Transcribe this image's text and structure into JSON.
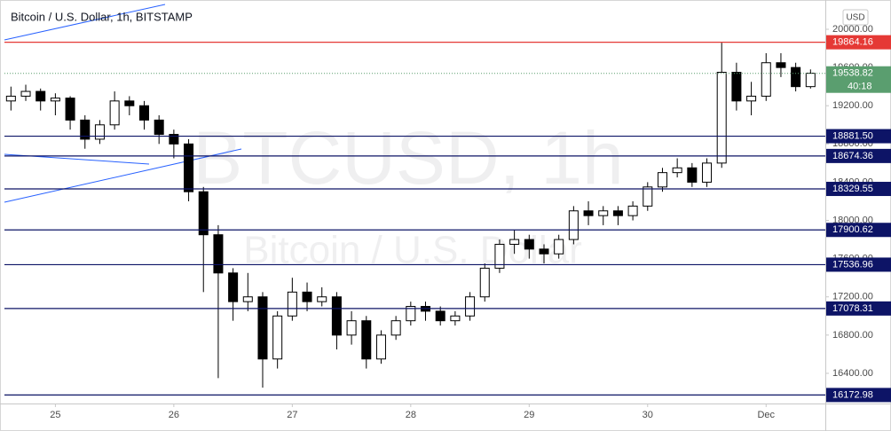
{
  "chart_data": {
    "type": "candlestick",
    "title": "Bitcoin / U.S. Dollar, 1h, BITSTAMP",
    "watermark": "BTCUSD, 1h",
    "watermark_subtitle": "Bitcoin / U.S. Dollar",
    "currency": "USD",
    "up_color": "#ffffff",
    "down_color": "#000000",
    "grid": false,
    "xlim": [
      24.57,
      31.5
    ],
    "ylim": [
      16084,
      20260
    ],
    "xticks": [
      {
        "value": 25,
        "label": "25"
      },
      {
        "value": 26,
        "label": "26"
      },
      {
        "value": 27,
        "label": "27"
      },
      {
        "value": 28,
        "label": "28"
      },
      {
        "value": 29,
        "label": "29"
      },
      {
        "value": 30,
        "label": "30"
      },
      {
        "value": 31,
        "label": "Dec"
      }
    ],
    "yticks": [
      {
        "value": 16400,
        "label": "16400.00"
      },
      {
        "value": 16800,
        "label": "16800.00"
      },
      {
        "value": 17200,
        "label": "17200.00"
      },
      {
        "value": 17600,
        "label": "17600.00"
      },
      {
        "value": 18000,
        "label": "18000.00"
      },
      {
        "value": 18400,
        "label": "18400.00"
      },
      {
        "value": 18800,
        "label": "18800.00"
      },
      {
        "value": 19200,
        "label": "19200.00"
      },
      {
        "value": 19600,
        "label": "19600.00"
      },
      {
        "value": 20000,
        "label": "20000.00"
      }
    ],
    "levels": [
      {
        "value": 19864.16,
        "label": "19864.16",
        "color": "#e53935"
      },
      {
        "value": 18881.5,
        "label": "18881.50",
        "color": "#0d1466"
      },
      {
        "value": 18674.36,
        "label": "18674.36",
        "color": "#0d1466"
      },
      {
        "value": 18329.55,
        "label": "18329.55",
        "color": "#0d1466"
      },
      {
        "value": 17900.62,
        "label": "17900.62",
        "color": "#0d1466"
      },
      {
        "value": 17536.96,
        "label": "17536.96",
        "color": "#0d1466"
      },
      {
        "value": 17078.31,
        "label": "17078.31",
        "color": "#0d1466"
      },
      {
        "value": 16172.98,
        "label": "16172.98",
        "color": "#0d1466"
      }
    ],
    "last_price": {
      "value": 19538.82,
      "label": "19538.82",
      "color": "#5a9e6f"
    },
    "countdown": "40:18",
    "x": [
      24.625,
      24.75,
      24.875,
      25,
      25.125,
      25.25,
      25.375,
      25.5,
      25.625,
      25.75,
      25.875,
      26,
      26.125,
      26.25,
      26.375,
      26.5,
      26.625,
      26.75,
      26.875,
      27,
      27.125,
      27.25,
      27.375,
      27.5,
      27.625,
      27.75,
      27.875,
      28,
      28.125,
      28.25,
      28.375,
      28.5,
      28.625,
      28.75,
      28.875,
      29,
      29.125,
      29.25,
      29.375,
      29.5,
      29.625,
      29.75,
      29.875,
      30,
      30.125,
      30.25,
      30.375,
      30.5,
      30.625,
      30.75,
      30.875,
      31,
      31.125,
      31.25,
      31.375
    ],
    "open": [
      19250,
      19300,
      19350,
      19250,
      19280,
      19050,
      18850,
      19000,
      19250,
      19200,
      19050,
      18900,
      18800,
      18300,
      17850,
      17450,
      17150,
      17200,
      16550,
      17000,
      17250,
      17150,
      17200,
      16800,
      16950,
      16550,
      16800,
      16950,
      17100,
      17050,
      16950,
      17000,
      17200,
      17500,
      17750,
      17800,
      17700,
      17650,
      17800,
      18100,
      18050,
      18100,
      18050,
      18150,
      18350,
      18500,
      18550,
      18400,
      18600,
      19550,
      19250,
      19300,
      19650,
      19600,
      19400
    ],
    "high": [
      19400,
      19420,
      19380,
      19330,
      19300,
      19100,
      19050,
      19350,
      19300,
      19250,
      19100,
      18950,
      18850,
      18350,
      17950,
      17500,
      17450,
      17250,
      17050,
      17400,
      17350,
      17300,
      17250,
      17050,
      17000,
      16850,
      17000,
      17150,
      17150,
      17100,
      17050,
      17250,
      17550,
      17800,
      17900,
      17850,
      17750,
      17850,
      18150,
      18200,
      18150,
      18150,
      18200,
      18400,
      18550,
      18650,
      18600,
      18650,
      19860,
      19650,
      19450,
      19750,
      19750,
      19650,
      19580
    ],
    "low": [
      19150,
      19250,
      19150,
      19100,
      18950,
      18750,
      18800,
      18950,
      19100,
      18950,
      18800,
      18650,
      18200,
      17250,
      16350,
      16950,
      17050,
      16250,
      16450,
      16950,
      17050,
      17100,
      16650,
      16700,
      16450,
      16500,
      16750,
      16900,
      16950,
      16900,
      16900,
      16950,
      17150,
      17450,
      17650,
      17600,
      17550,
      17600,
      17750,
      17950,
      17950,
      17950,
      18000,
      18100,
      18300,
      18450,
      18350,
      18350,
      18550,
      19150,
      19100,
      19250,
      19500,
      19350,
      19380
    ],
    "close": [
      19300,
      19350,
      19250,
      19280,
      19050,
      18850,
      19000,
      19250,
      19200,
      19050,
      18900,
      18800,
      18300,
      17850,
      17450,
      17150,
      17200,
      16550,
      17000,
      17250,
      17150,
      17200,
      16800,
      16950,
      16550,
      16800,
      16950,
      17100,
      17050,
      16950,
      17000,
      17200,
      17500,
      17750,
      17800,
      17700,
      17650,
      17800,
      18100,
      18050,
      18100,
      18050,
      18150,
      18350,
      18500,
      18550,
      18400,
      18600,
      19550,
      19250,
      19300,
      19650,
      19600,
      19400,
      19540
    ]
  }
}
